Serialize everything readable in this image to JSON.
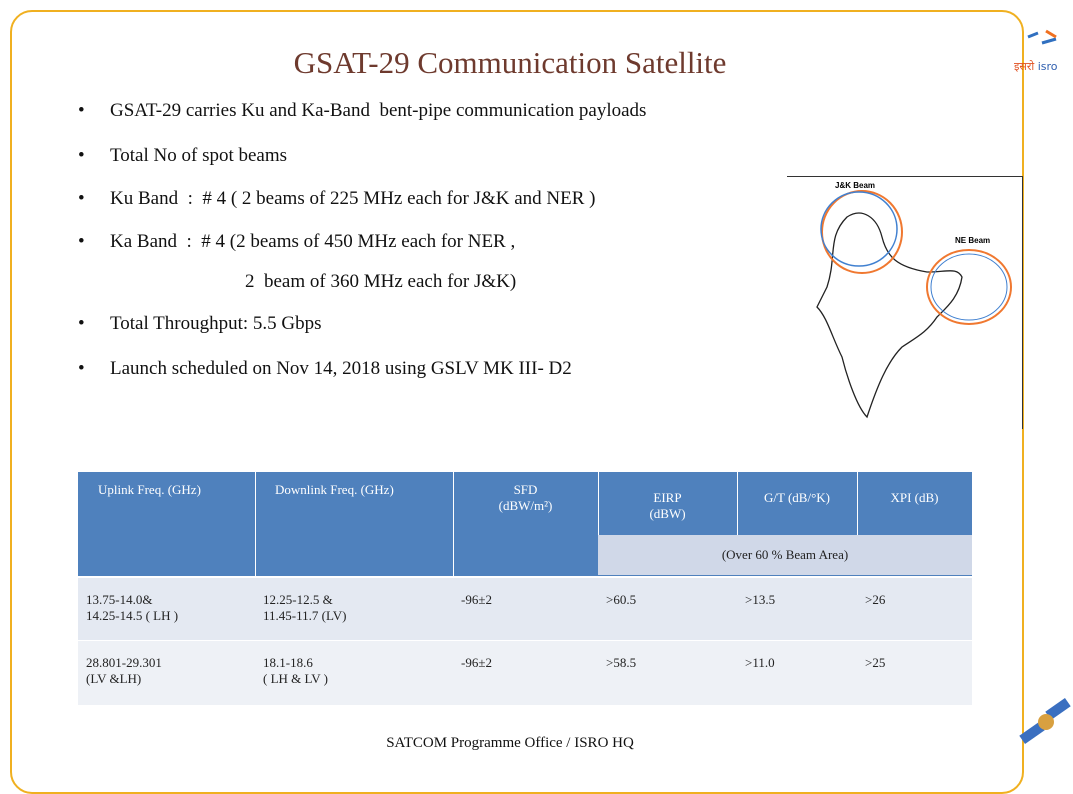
{
  "header": {
    "title": "GSAT-29 Communication Satellite",
    "logo": [
      "इसरो",
      "isro"
    ]
  },
  "bullets": [
    [
      "GSAT-29 carries Ku and Ka-Band  bent-pipe communication payloads"
    ],
    [
      "Total No of spot beams"
    ],
    [
      "Ku Band  :  # 4 ( 2 beams of 225 MHz each for J&K and NER )"
    ],
    [
      "Ka Band  :  # 4 (2 beams of 450 MHz each for NER ,",
      "2  beam of 360 MHz each for J&K)"
    ],
    [
      "Total Throughput: 5.5 Gbps"
    ],
    [
      "Launch scheduled on Nov 14, 2018 using GSLV MK III- D2"
    ]
  ],
  "map": {
    "labels": [
      "J&K Beam",
      "NE Beam"
    ]
  },
  "table": {
    "header": [
      [
        "Uplink Freq. (GHz)"
      ],
      [
        "Downlink Freq. (GHz)"
      ],
      [
        "SFD",
        "(dBW/m²)"
      ],
      [
        "EIRP",
        "(dBW)"
      ],
      [
        "G/T (dB/°K)"
      ],
      [
        "XPI (dB)"
      ]
    ],
    "subheader": "(Over 60 % Beam Area)",
    "rows": [
      [
        [
          "13.75-14.0&",
          "14.25-14.5 ( LH )"
        ],
        [
          "12.25-12.5 &",
          "11.45-11.7 (LV)"
        ],
        [
          "-96±2"
        ],
        [
          ">60.5"
        ],
        [
          ">13.5"
        ],
        [
          ">26"
        ]
      ],
      [
        [
          "28.801-29.301",
          "(LV &LH)"
        ],
        [
          "18.1-18.6",
          "( LH & LV )"
        ],
        [
          "-96±2"
        ],
        [
          ">58.5"
        ],
        [
          ">11.0"
        ],
        [
          ">25"
        ]
      ]
    ]
  },
  "footer": "SATCOM Programme Office / ISRO HQ"
}
